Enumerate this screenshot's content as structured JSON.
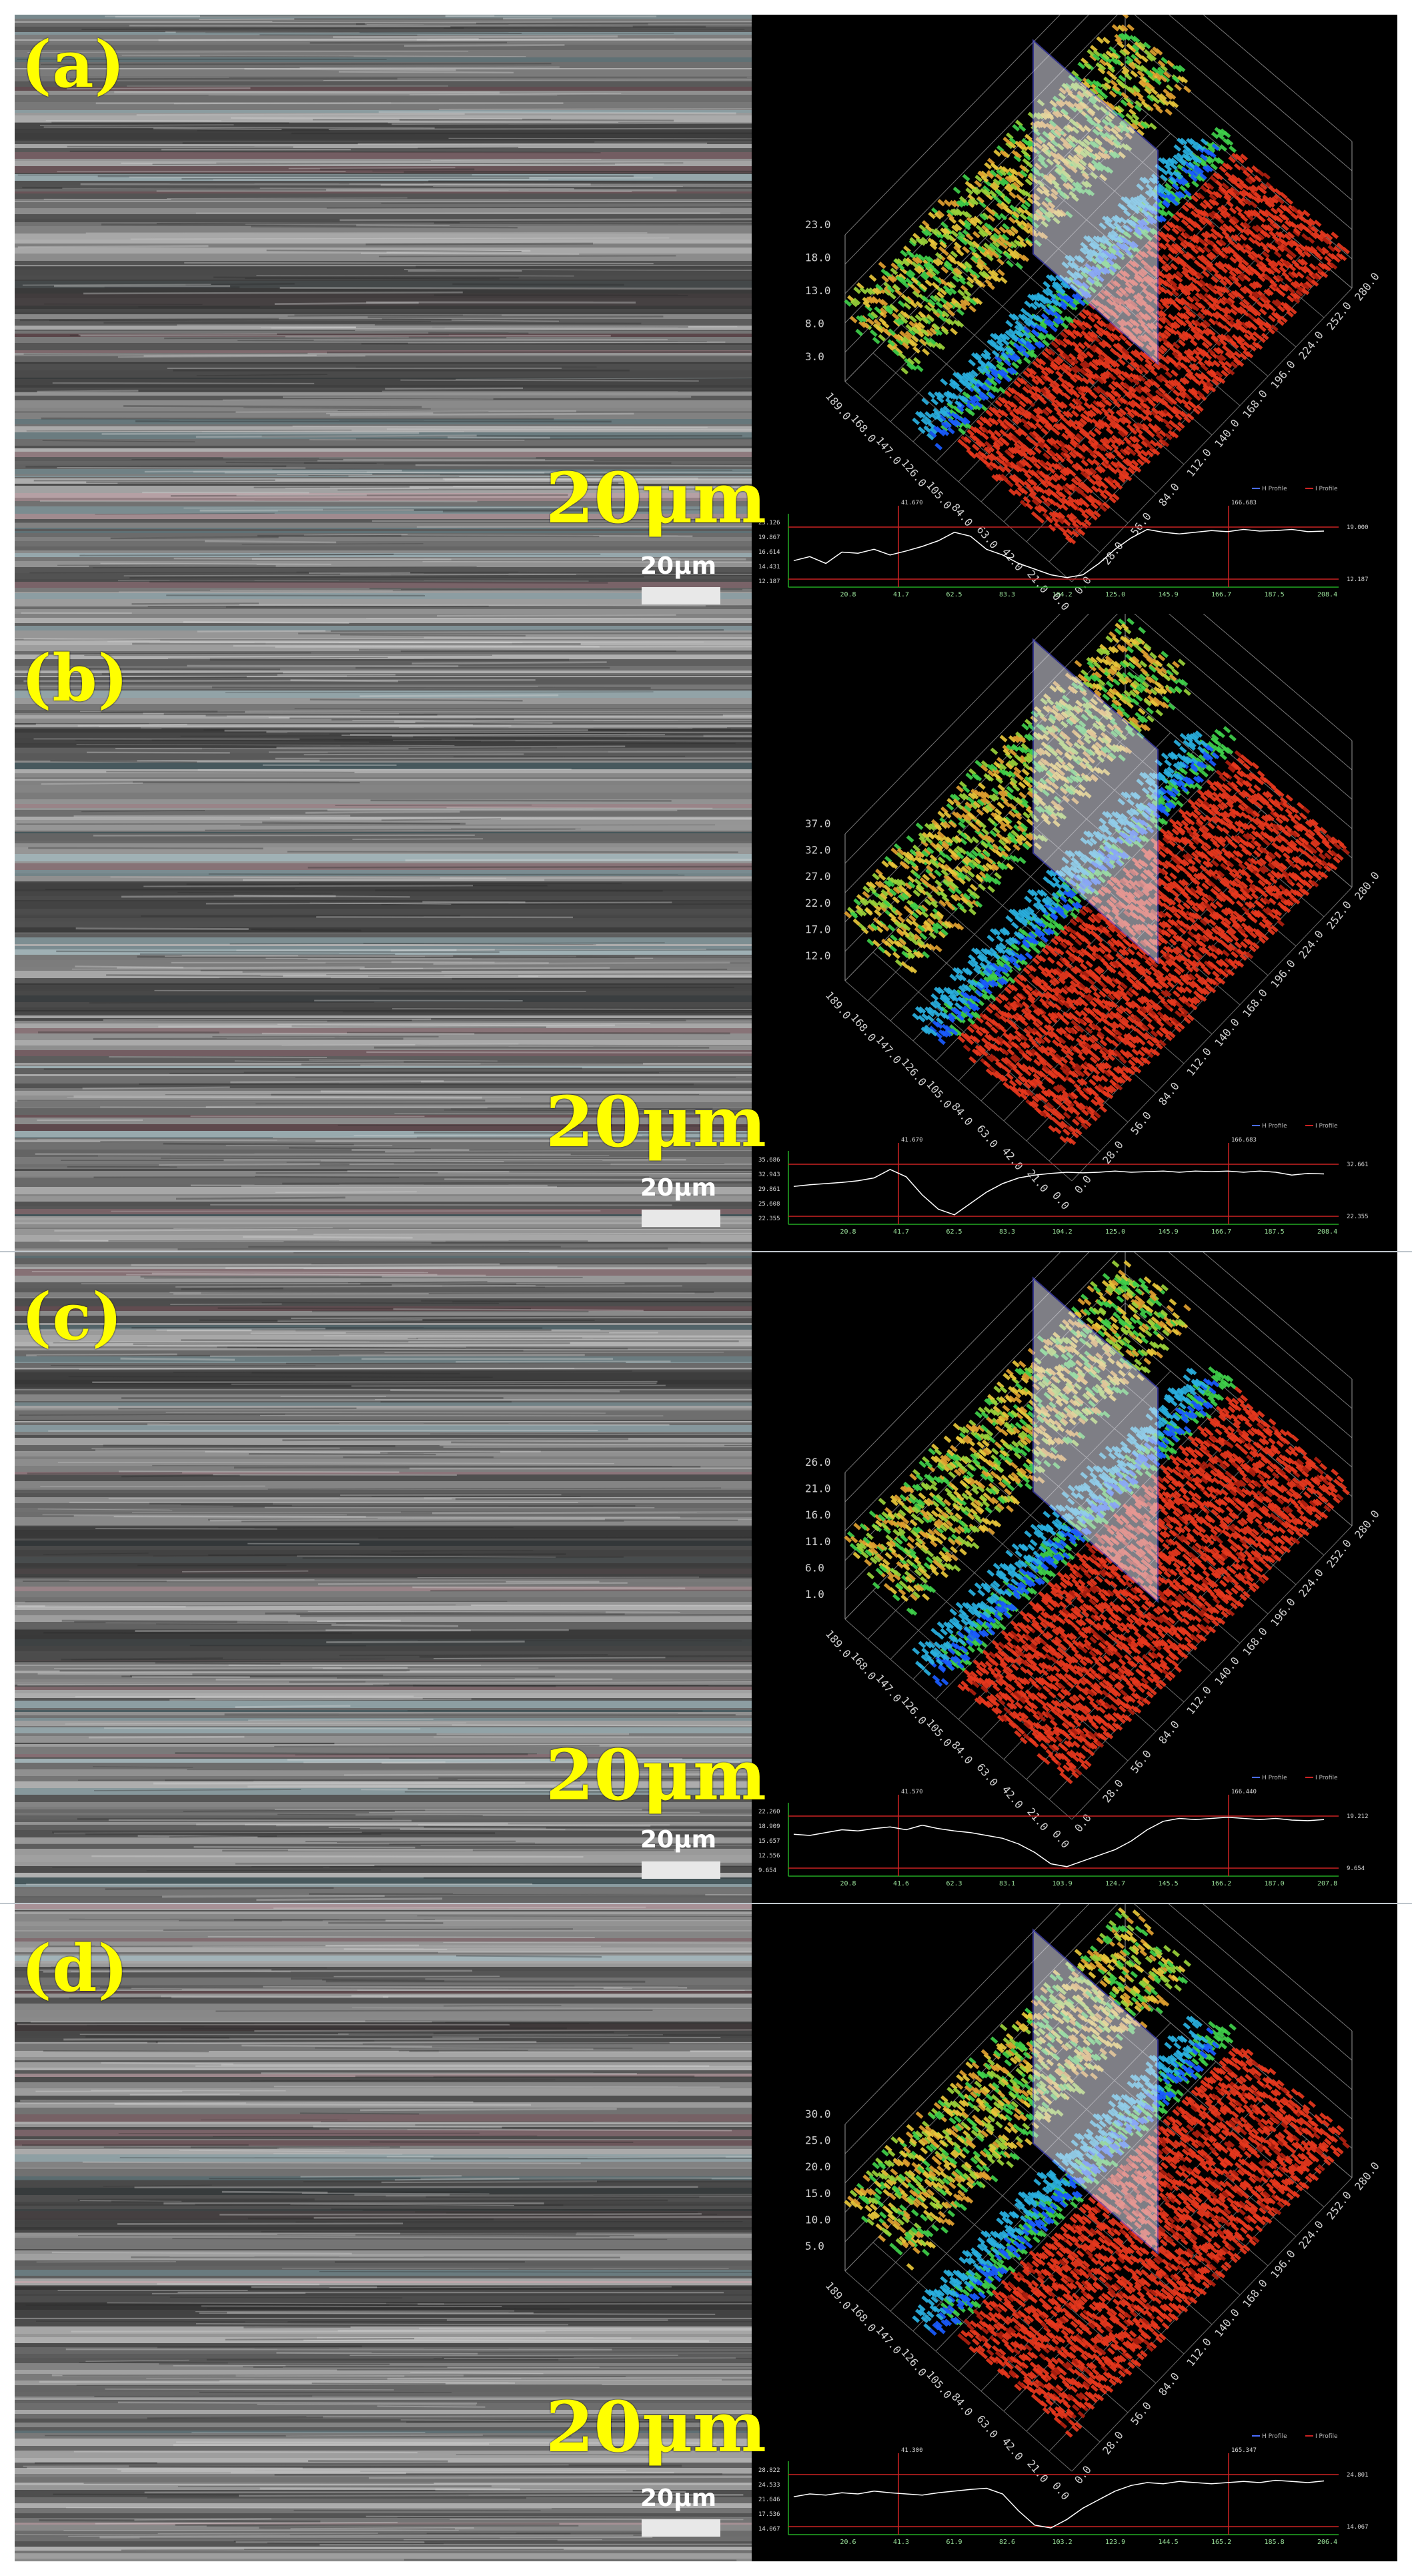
{
  "panels": [
    {
      "label": "(a)",
      "scale_big": "20μm",
      "scale_small": "20μm",
      "z_ticks": [
        "23.0",
        "18.0",
        "13.0",
        "8.0",
        "3.0"
      ],
      "y_ticks": [
        "280.0",
        "252.0",
        "224.0",
        "196.0",
        "168.0",
        "140.0",
        "112.0",
        "84.0",
        "56.0",
        "28.0",
        "0.0"
      ],
      "x_ticks": [
        "189.0",
        "168.0",
        "147.0",
        "126.0",
        "105.0",
        "84.0",
        "63.0",
        "42.0",
        "21.0",
        "0.0"
      ],
      "profile_x_ticks": [
        "20.8",
        "41.7",
        "62.5",
        "83.3",
        "104.2",
        "125.0",
        "145.9",
        "166.7",
        "187.5",
        "208.4"
      ],
      "profile_y_ticks": [
        "23.126",
        "19.867",
        "16.614",
        "14.431",
        "12.187"
      ],
      "cursor_labels": [
        "41.670",
        "166.683"
      ],
      "right_values": [
        "19.000",
        "12.187"
      ],
      "legend": [
        "H Profile",
        "I Profile"
      ],
      "profile_points": [
        0.35,
        0.42,
        0.3,
        0.5,
        0.48,
        0.55,
        0.45,
        0.52,
        0.6,
        0.7,
        0.85,
        0.78,
        0.55,
        0.45,
        0.3,
        0.2,
        0.1,
        0.05,
        0.1,
        0.3,
        0.55,
        0.75,
        0.9,
        0.85,
        0.82,
        0.85,
        0.88,
        0.86,
        0.9,
        0.87,
        0.88,
        0.9,
        0.86,
        0.87
      ]
    },
    {
      "label": "(b)",
      "scale_big": "20μm",
      "scale_small": "20μm",
      "z_ticks": [
        "37.0",
        "32.0",
        "27.0",
        "22.0",
        "17.0",
        "12.0"
      ],
      "y_ticks": [
        "280.0",
        "252.0",
        "224.0",
        "196.0",
        "168.0",
        "140.0",
        "112.0",
        "84.0",
        "56.0",
        "28.0",
        "0.0"
      ],
      "x_ticks": [
        "189.0",
        "168.0",
        "147.0",
        "126.0",
        "105.0",
        "84.0",
        "63.0",
        "42.0",
        "21.0",
        "0.0"
      ],
      "profile_x_ticks": [
        "20.8",
        "41.7",
        "62.5",
        "83.3",
        "104.2",
        "125.0",
        "145.9",
        "166.7",
        "187.5",
        "208.4"
      ],
      "profile_y_ticks": [
        "35.686",
        "32.943",
        "29.861",
        "25.608",
        "22.355"
      ],
      "cursor_labels": [
        "41.670",
        "166.683"
      ],
      "right_values": [
        "32.661",
        "22.355"
      ],
      "legend": [
        "H Profile",
        "I Profile"
      ],
      "profile_points": [
        0.55,
        0.58,
        0.6,
        0.62,
        0.65,
        0.7,
        0.85,
        0.72,
        0.4,
        0.15,
        0.05,
        0.25,
        0.45,
        0.6,
        0.7,
        0.75,
        0.78,
        0.8,
        0.79,
        0.8,
        0.82,
        0.8,
        0.81,
        0.82,
        0.8,
        0.82,
        0.81,
        0.82,
        0.8,
        0.82,
        0.8,
        0.75,
        0.78,
        0.77
      ]
    },
    {
      "label": "(c)",
      "scale_big": "20μm",
      "scale_small": "20μm",
      "z_ticks": [
        "26.0",
        "21.0",
        "16.0",
        "11.0",
        "6.0",
        "1.0"
      ],
      "y_ticks": [
        "280.0",
        "252.0",
        "224.0",
        "196.0",
        "168.0",
        "140.0",
        "112.0",
        "84.0",
        "56.0",
        "28.0",
        "0.0"
      ],
      "x_ticks": [
        "189.0",
        "168.0",
        "147.0",
        "126.0",
        "105.0",
        "84.0",
        "63.0",
        "42.0",
        "21.0",
        "0.0"
      ],
      "profile_x_ticks": [
        "20.8",
        "41.6",
        "62.3",
        "83.1",
        "103.9",
        "124.7",
        "145.5",
        "166.2",
        "187.0",
        "207.8"
      ],
      "profile_y_ticks": [
        "22.260",
        "18.909",
        "15.657",
        "12.556",
        "9.654"
      ],
      "cursor_labels": [
        "41.570",
        "166.440"
      ],
      "right_values": [
        "19.212",
        "9.654"
      ],
      "legend": [
        "H Profile",
        "I Profile"
      ],
      "profile_points": [
        0.62,
        0.6,
        0.65,
        0.7,
        0.68,
        0.72,
        0.75,
        0.7,
        0.78,
        0.72,
        0.68,
        0.65,
        0.6,
        0.55,
        0.45,
        0.3,
        0.1,
        0.05,
        0.15,
        0.25,
        0.35,
        0.5,
        0.7,
        0.85,
        0.9,
        0.88,
        0.9,
        0.92,
        0.9,
        0.88,
        0.9,
        0.87,
        0.86,
        0.88
      ]
    },
    {
      "label": "(d)",
      "scale_big": "20μm",
      "scale_small": "20μm",
      "z_ticks": [
        "30.0",
        "25.0",
        "20.0",
        "15.0",
        "10.0",
        "5.0"
      ],
      "y_ticks": [
        "280.0",
        "252.0",
        "224.0",
        "196.0",
        "168.0",
        "140.0",
        "112.0",
        "84.0",
        "56.0",
        "28.0",
        "0.0"
      ],
      "x_ticks": [
        "189.0",
        "168.0",
        "147.0",
        "126.0",
        "105.0",
        "84.0",
        "63.0",
        "42.0",
        "21.0",
        "0.0"
      ],
      "profile_x_ticks": [
        "20.6",
        "41.3",
        "61.9",
        "82.6",
        "103.2",
        "123.9",
        "144.5",
        "165.2",
        "185.8",
        "206.4"
      ],
      "profile_y_ticks": [
        "28.822",
        "24.533",
        "21.646",
        "17.536",
        "14.067"
      ],
      "cursor_labels": [
        "41.300",
        "165.347"
      ],
      "right_values": [
        "24.801",
        "14.067"
      ],
      "legend": [
        "H Profile",
        "I Profile"
      ],
      "profile_points": [
        0.55,
        0.6,
        0.58,
        0.62,
        0.6,
        0.65,
        0.62,
        0.6,
        0.58,
        0.62,
        0.65,
        0.68,
        0.7,
        0.6,
        0.3,
        0.05,
        0.0,
        0.15,
        0.35,
        0.5,
        0.65,
        0.75,
        0.8,
        0.78,
        0.82,
        0.8,
        0.78,
        0.8,
        0.82,
        0.8,
        0.84,
        0.82,
        0.8,
        0.83
      ]
    }
  ],
  "colors": {
    "label": "#ffff00",
    "plot_bg": "#000000",
    "cursor_line": "#cc2222",
    "profile_line": "#ffffff",
    "axis_green": "#22aa22"
  }
}
